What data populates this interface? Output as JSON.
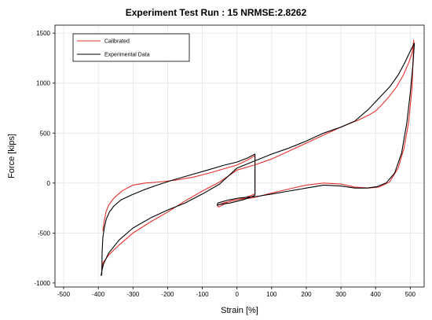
{
  "chart_data": {
    "type": "line",
    "title": "Experiment Test Run : 15  NRMSE:2.8262",
    "xlabel": "Strain [%]",
    "ylabel": "Force [kips]",
    "xlim": [
      -525,
      540
    ],
    "ylim": [
      -1040,
      1580
    ],
    "xticks": [
      -500,
      -400,
      -300,
      -200,
      -100,
      0,
      100,
      200,
      300,
      400,
      500
    ],
    "yticks": [
      -1000,
      -500,
      0,
      500,
      1000,
      1500
    ],
    "grid": true,
    "legend_position": "top-left",
    "series": [
      {
        "name": "Calibrated",
        "color": "#e8302a",
        "x": [
          -387,
          -383,
          -378,
          -370,
          -355,
          -330,
          -300,
          -265,
          -225,
          -175,
          -125,
          -80,
          -40,
          0,
          30,
          52,
          52,
          20,
          -10,
          -40,
          -57,
          -52,
          -20,
          10,
          40,
          55,
          55,
          100,
          150,
          200,
          250,
          300,
          340,
          380,
          410,
          440,
          465,
          482,
          495,
          505,
          510,
          510,
          505,
          495,
          480,
          460,
          440,
          420,
          400,
          380,
          350,
          300,
          250,
          200,
          150,
          100,
          50,
          0,
          -50,
          -100,
          -150,
          -200,
          -250,
          -300,
          -340,
          -370,
          -387,
          -390,
          -390
        ],
        "y": [
          -480,
          -380,
          -290,
          -220,
          -150,
          -75,
          -20,
          0,
          10,
          30,
          60,
          100,
          140,
          180,
          230,
          275,
          -110,
          -150,
          -175,
          -200,
          -225,
          -240,
          -180,
          -160,
          -150,
          -140,
          -140,
          -100,
          -60,
          -20,
          0,
          -10,
          -40,
          -50,
          -40,
          10,
          150,
          350,
          600,
          950,
          1430,
          1430,
          1300,
          1200,
          1080,
          960,
          870,
          790,
          720,
          680,
          630,
          560,
          480,
          400,
          320,
          240,
          180,
          130,
          10,
          -80,
          -180,
          -290,
          -390,
          -500,
          -620,
          -720,
          -800,
          -860,
          -880
        ],
        "dash": false
      },
      {
        "name": "Experimental Data",
        "color": "#000000",
        "x": [
          -390,
          -389,
          -387,
          -383,
          -377,
          -368,
          -355,
          -335,
          -305,
          -270,
          -230,
          -185,
          -135,
          -85,
          -35,
          0,
          30,
          52,
          52,
          48,
          20,
          -20,
          -50,
          -57,
          -55,
          -25,
          5,
          35,
          55,
          55,
          100,
          150,
          200,
          250,
          300,
          340,
          375,
          405,
          430,
          455,
          475,
          490,
          500,
          508,
          512,
          512,
          500,
          485,
          465,
          440,
          410,
          380,
          340,
          300,
          250,
          200,
          150,
          100,
          50,
          0,
          -50,
          -100,
          -150,
          -200,
          -250,
          -300,
          -340,
          -370,
          -385,
          -390,
          -392
        ],
        "y": [
          -920,
          -700,
          -550,
          -450,
          -360,
          -290,
          -230,
          -170,
          -120,
          -70,
          -20,
          30,
          80,
          130,
          180,
          210,
          250,
          290,
          -120,
          -130,
          -165,
          -200,
          -215,
          -220,
          -200,
          -170,
          -150,
          -140,
          -135,
          -135,
          -110,
          -80,
          -50,
          -20,
          -30,
          -50,
          -50,
          -35,
          0,
          100,
          300,
          600,
          900,
          1200,
          1400,
          1400,
          1320,
          1210,
          1080,
          960,
          850,
          740,
          620,
          560,
          500,
          420,
          350,
          290,
          220,
          150,
          -10,
          -110,
          -200,
          -270,
          -350,
          -450,
          -570,
          -700,
          -810,
          -880,
          -930
        ],
        "dash": false
      }
    ]
  }
}
